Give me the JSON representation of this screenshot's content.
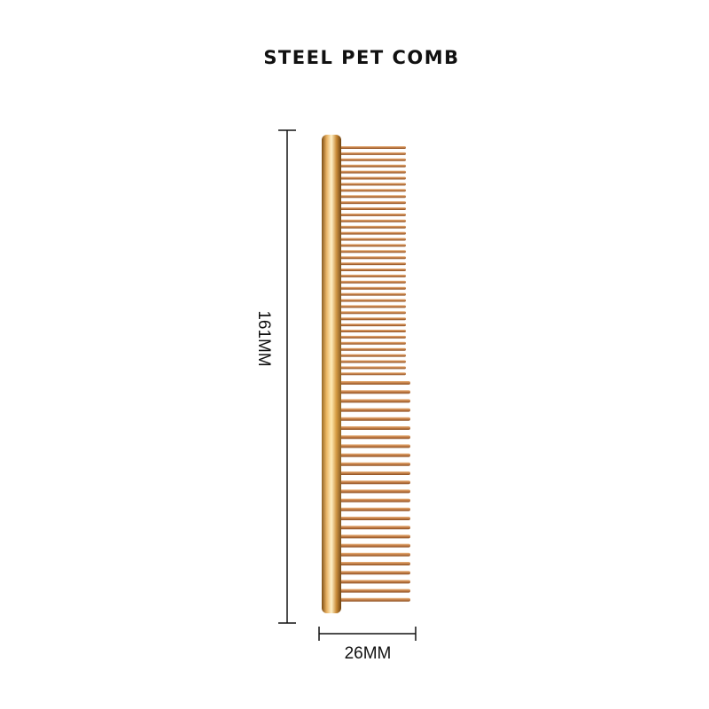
{
  "title": "STEEL PET COMB",
  "dimensions": {
    "height": "161MM",
    "width": "26MM"
  }
}
